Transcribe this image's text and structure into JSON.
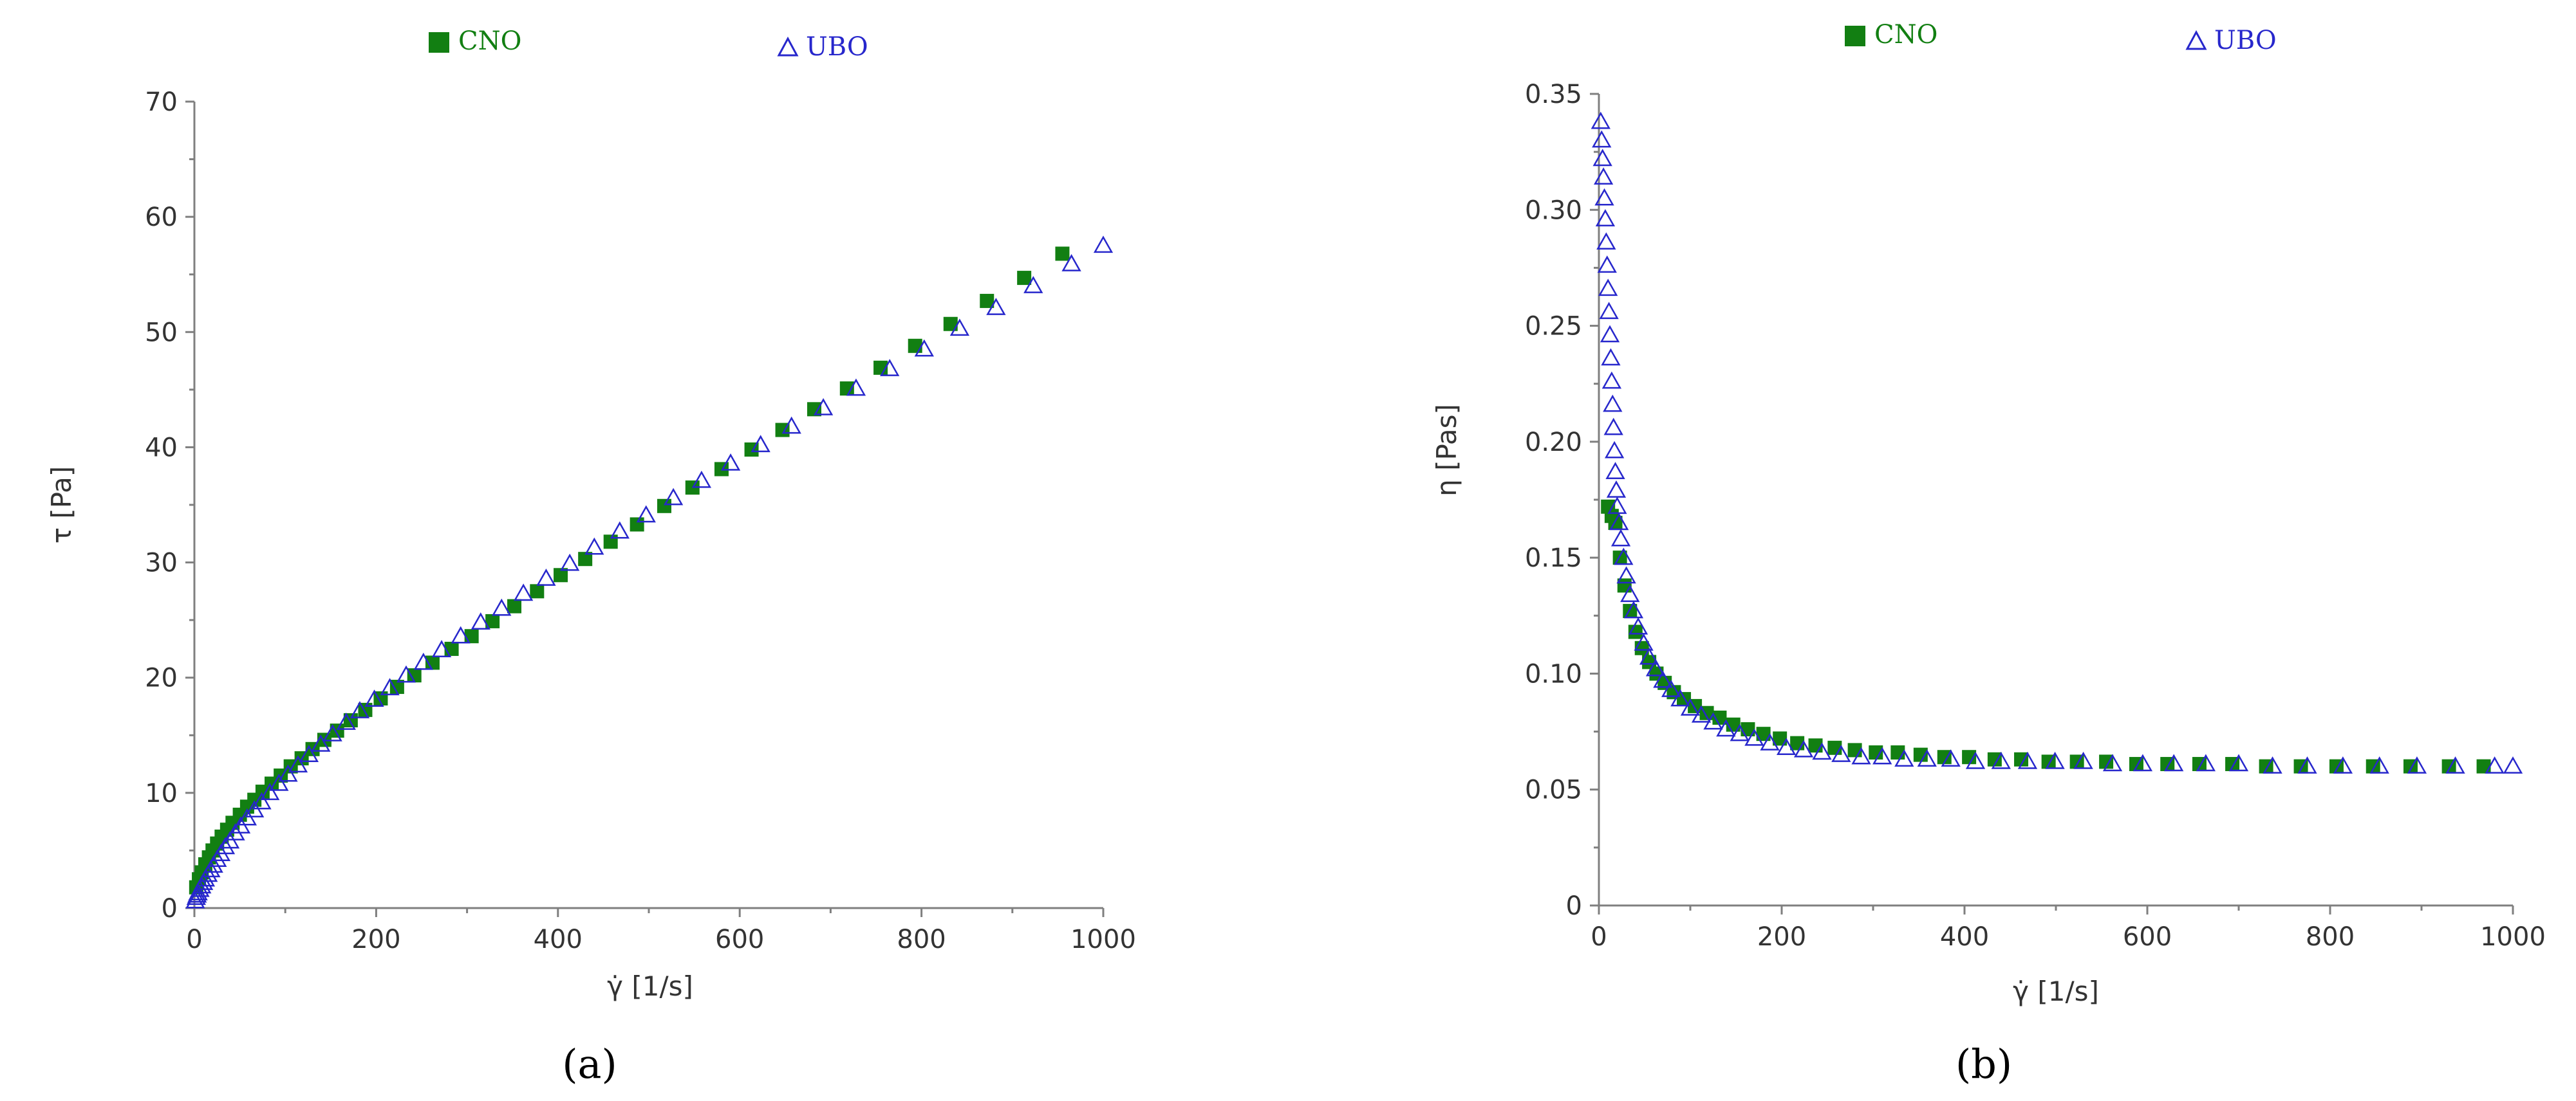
{
  "colors": {
    "cno": "#127f12",
    "ubo": "#2727cc",
    "axis": "#7f7f7f",
    "text": "#333333"
  },
  "chart_data": [
    {
      "type": "scatter",
      "panel_label": "(a)",
      "xlabel": "γ̇ [1/s]",
      "ylabel": "τ [Pa]",
      "xlim": [
        0,
        1000
      ],
      "ylim": [
        0,
        70
      ],
      "x_ticks": [
        0,
        200,
        400,
        600,
        800,
        1000
      ],
      "y_ticks": [
        0,
        10,
        20,
        30,
        40,
        50,
        60,
        70
      ],
      "grid": false,
      "legend_position": "top-center",
      "series": [
        {
          "name": "CNO",
          "marker": "square-filled",
          "color": "#127f12",
          "points": [
            [
              2,
              1.8
            ],
            [
              5,
              2.5
            ],
            [
              8,
              3.1
            ],
            [
              12,
              3.8
            ],
            [
              16,
              4.4
            ],
            [
              20,
              5.0
            ],
            [
              25,
              5.6
            ],
            [
              30,
              6.2
            ],
            [
              36,
              6.8
            ],
            [
              42,
              7.4
            ],
            [
              50,
              8.1
            ],
            [
              58,
              8.8
            ],
            [
              66,
              9.4
            ],
            [
              75,
              10.1
            ],
            [
              85,
              10.8
            ],
            [
              95,
              11.5
            ],
            [
              106,
              12.3
            ],
            [
              118,
              13.0
            ],
            [
              130,
              13.8
            ],
            [
              143,
              14.6
            ],
            [
              157,
              15.4
            ],
            [
              172,
              16.3
            ],
            [
              188,
              17.2
            ],
            [
              205,
              18.2
            ],
            [
              223,
              19.2
            ],
            [
              242,
              20.2
            ],
            [
              262,
              21.3
            ],
            [
              283,
              22.5
            ],
            [
              305,
              23.6
            ],
            [
              328,
              24.9
            ],
            [
              352,
              26.2
            ],
            [
              377,
              27.5
            ],
            [
              403,
              28.9
            ],
            [
              430,
              30.3
            ],
            [
              458,
              31.8
            ],
            [
              487,
              33.3
            ],
            [
              517,
              34.9
            ],
            [
              548,
              36.5
            ],
            [
              580,
              38.1
            ],
            [
              613,
              39.8
            ],
            [
              647,
              41.5
            ],
            [
              682,
              43.3
            ],
            [
              718,
              45.1
            ],
            [
              755,
              46.9
            ],
            [
              793,
              48.8
            ],
            [
              832,
              50.7
            ],
            [
              872,
              52.7
            ],
            [
              913,
              54.7
            ],
            [
              955,
              56.8
            ]
          ]
        },
        {
          "name": "UBO",
          "marker": "triangle-open",
          "color": "#2727cc",
          "points": [
            [
              1,
              0.6
            ],
            [
              2,
              0.9
            ],
            [
              3,
              1.1
            ],
            [
              4,
              1.3
            ],
            [
              6,
              1.6
            ],
            [
              8,
              1.9
            ],
            [
              10,
              2.2
            ],
            [
              12,
              2.5
            ],
            [
              15,
              2.9
            ],
            [
              18,
              3.3
            ],
            [
              21,
              3.7
            ],
            [
              25,
              4.2
            ],
            [
              29,
              4.7
            ],
            [
              34,
              5.3
            ],
            [
              39,
              5.8
            ],
            [
              45,
              6.5
            ],
            [
              51,
              7.1
            ],
            [
              58,
              7.8
            ],
            [
              66,
              8.5
            ],
            [
              74,
              9.2
            ],
            [
              83,
              10.0
            ],
            [
              93,
              10.8
            ],
            [
              103,
              11.6
            ],
            [
              114,
              12.4
            ],
            [
              126,
              13.3
            ],
            [
              139,
              14.2
            ],
            [
              152,
              15.1
            ],
            [
              167,
              16.1
            ],
            [
              182,
              17.1
            ],
            [
              198,
              18.1
            ],
            [
              215,
              19.1
            ],
            [
              233,
              20.2
            ],
            [
              252,
              21.3
            ],
            [
              272,
              22.4
            ],
            [
              293,
              23.6
            ],
            [
              315,
              24.8
            ],
            [
              338,
              26.0
            ],
            [
              362,
              27.3
            ],
            [
              387,
              28.6
            ],
            [
              413,
              29.9
            ],
            [
              440,
              31.3
            ],
            [
              468,
              32.7
            ],
            [
              497,
              34.1
            ],
            [
              527,
              35.6
            ],
            [
              558,
              37.1
            ],
            [
              590,
              38.6
            ],
            [
              623,
              40.2
            ],
            [
              657,
              41.8
            ],
            [
              692,
              43.4
            ],
            [
              728,
              45.1
            ],
            [
              765,
              46.8
            ],
            [
              803,
              48.5
            ],
            [
              842,
              50.3
            ],
            [
              882,
              52.1
            ],
            [
              923,
              54.0
            ],
            [
              965,
              55.9
            ],
            [
              1000,
              57.5
            ]
          ]
        }
      ]
    },
    {
      "type": "scatter",
      "panel_label": "(b)",
      "xlabel": "γ̇ [1/s]",
      "ylabel": "η [Pas]",
      "xlim": [
        0,
        1000
      ],
      "ylim": [
        0,
        0.35
      ],
      "x_ticks": [
        0,
        200,
        400,
        600,
        800,
        1000
      ],
      "y_ticks": [
        0,
        0.05,
        0.1,
        0.15,
        0.2,
        0.25,
        0.3,
        0.35
      ],
      "y_tick_labels": [
        "0",
        "0.05",
        "0.10",
        "0.15",
        "0.20",
        "0.25",
        "0.30",
        "0.35"
      ],
      "grid": false,
      "legend_position": "top-center",
      "series": [
        {
          "name": "CNO",
          "marker": "square-filled",
          "color": "#127f12",
          "points": [
            [
              10,
              0.172
            ],
            [
              14,
              0.168
            ],
            [
              18,
              0.165
            ],
            [
              23,
              0.15
            ],
            [
              28,
              0.138
            ],
            [
              34,
              0.127
            ],
            [
              40,
              0.118
            ],
            [
              47,
              0.111
            ],
            [
              55,
              0.105
            ],
            [
              63,
              0.1
            ],
            [
              72,
              0.096
            ],
            [
              82,
              0.092
            ],
            [
              93,
              0.089
            ],
            [
              105,
              0.086
            ],
            [
              118,
              0.083
            ],
            [
              132,
              0.081
            ],
            [
              147,
              0.078
            ],
            [
              163,
              0.076
            ],
            [
              180,
              0.074
            ],
            [
              198,
              0.072
            ],
            [
              217,
              0.07
            ],
            [
              237,
              0.069
            ],
            [
              258,
              0.068
            ],
            [
              280,
              0.067
            ],
            [
              303,
              0.066
            ],
            [
              327,
              0.066
            ],
            [
              352,
              0.065
            ],
            [
              378,
              0.064
            ],
            [
              405,
              0.064
            ],
            [
              433,
              0.063
            ],
            [
              462,
              0.063
            ],
            [
              492,
              0.062
            ],
            [
              523,
              0.062
            ],
            [
              555,
              0.062
            ],
            [
              588,
              0.061
            ],
            [
              622,
              0.061
            ],
            [
              657,
              0.061
            ],
            [
              693,
              0.061
            ],
            [
              730,
              0.06
            ],
            [
              768,
              0.06
            ],
            [
              807,
              0.06
            ],
            [
              847,
              0.06
            ],
            [
              888,
              0.06
            ],
            [
              930,
              0.06
            ],
            [
              968,
              0.06
            ]
          ]
        },
        {
          "name": "UBO",
          "marker": "triangle-open",
          "color": "#2727cc",
          "points": [
            [
              2,
              0.338
            ],
            [
              3,
              0.33
            ],
            [
              4,
              0.322
            ],
            [
              5,
              0.314
            ],
            [
              6,
              0.305
            ],
            [
              7,
              0.296
            ],
            [
              8,
              0.286
            ],
            [
              9,
              0.276
            ],
            [
              10,
              0.266
            ],
            [
              11,
              0.256
            ],
            [
              12,
              0.246
            ],
            [
              13,
              0.236
            ],
            [
              14,
              0.226
            ],
            [
              15,
              0.216
            ],
            [
              16,
              0.206
            ],
            [
              17,
              0.196
            ],
            [
              18,
              0.187
            ],
            [
              19,
              0.179
            ],
            [
              20,
              0.172
            ],
            [
              22,
              0.165
            ],
            [
              24,
              0.158
            ],
            [
              27,
              0.15
            ],
            [
              30,
              0.142
            ],
            [
              34,
              0.134
            ],
            [
              38,
              0.127
            ],
            [
              43,
              0.12
            ],
            [
              49,
              0.113
            ],
            [
              55,
              0.107
            ],
            [
              62,
              0.102
            ],
            [
              70,
              0.097
            ],
            [
              79,
              0.093
            ],
            [
              89,
              0.089
            ],
            [
              100,
              0.085
            ],
            [
              112,
              0.082
            ],
            [
              125,
              0.079
            ],
            [
              139,
              0.076
            ],
            [
              154,
              0.074
            ],
            [
              170,
              0.072
            ],
            [
              187,
              0.07
            ],
            [
              205,
              0.068
            ],
            [
              224,
              0.067
            ],
            [
              244,
              0.066
            ],
            [
              265,
              0.065
            ],
            [
              287,
              0.064
            ],
            [
              310,
              0.064
            ],
            [
              334,
              0.063
            ],
            [
              359,
              0.063
            ],
            [
              385,
              0.063
            ],
            [
              412,
              0.062
            ],
            [
              440,
              0.062
            ],
            [
              469,
              0.062
            ],
            [
              499,
              0.062
            ],
            [
              530,
              0.062
            ],
            [
              562,
              0.061
            ],
            [
              595,
              0.061
            ],
            [
              629,
              0.061
            ],
            [
              664,
              0.061
            ],
            [
              700,
              0.061
            ],
            [
              737,
              0.06
            ],
            [
              775,
              0.06
            ],
            [
              814,
              0.06
            ],
            [
              854,
              0.06
            ],
            [
              895,
              0.06
            ],
            [
              937,
              0.06
            ],
            [
              980,
              0.06
            ],
            [
              1000,
              0.06
            ]
          ]
        }
      ]
    }
  ]
}
